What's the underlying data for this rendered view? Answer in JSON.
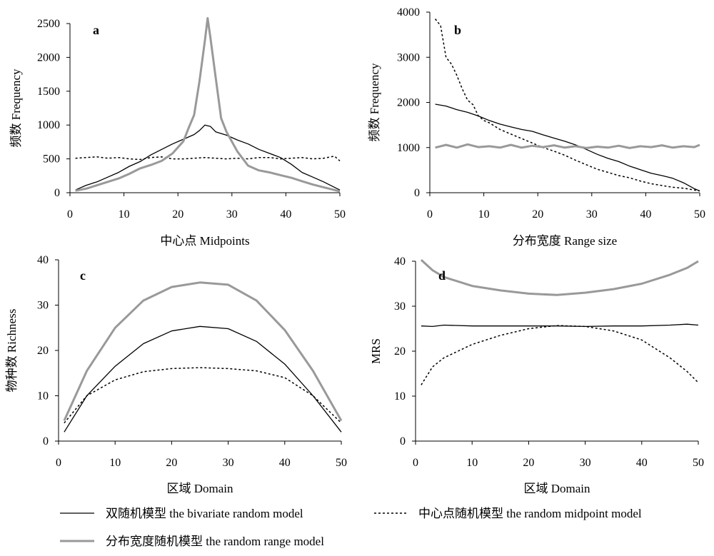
{
  "legend": {
    "bivariate": "双随机模型  the bivariate random model",
    "midpoint": "中心点随机模型  the random midpoint model",
    "range": "分布宽度随机模型  the random range model"
  },
  "colors": {
    "bivariate": "#000000",
    "midpoint": "#000000",
    "range": "#999999"
  },
  "chart_data": [
    {
      "panel": "a",
      "type": "line",
      "xlabel": "中心点  Midpoints",
      "ylabel": "频数  Frequency",
      "xlim": [
        0,
        50
      ],
      "ylim": [
        0,
        2500
      ],
      "xticks": [
        0,
        10,
        20,
        30,
        40,
        50
      ],
      "yticks": [
        0,
        500,
        1000,
        1500,
        2000,
        2500
      ],
      "series": [
        {
          "key": "bivariate",
          "x": [
            1,
            3,
            5,
            7,
            9,
            11,
            13,
            15,
            17,
            19,
            21,
            23,
            24,
            25,
            26,
            27,
            29,
            31,
            33,
            35,
            37,
            39,
            41,
            43,
            45,
            47,
            49,
            50
          ],
          "y": [
            40,
            110,
            160,
            230,
            300,
            390,
            460,
            560,
            640,
            720,
            790,
            860,
            920,
            1000,
            980,
            900,
            850,
            780,
            720,
            640,
            580,
            520,
            420,
            300,
            230,
            160,
            80,
            40
          ]
        },
        {
          "key": "midpoint",
          "x": [
            1,
            3,
            5,
            7,
            9,
            11,
            13,
            15,
            17,
            19,
            21,
            23,
            25,
            27,
            29,
            31,
            33,
            35,
            37,
            39,
            41,
            43,
            45,
            47,
            49,
            50
          ],
          "y": [
            510,
            520,
            530,
            510,
            520,
            500,
            490,
            520,
            530,
            500,
            500,
            510,
            520,
            510,
            500,
            510,
            500,
            520,
            520,
            500,
            510,
            520,
            500,
            510,
            540,
            470
          ]
        },
        {
          "key": "range",
          "x": [
            1,
            3,
            5,
            7,
            9,
            11,
            13,
            15,
            17,
            19,
            21,
            22,
            23,
            24,
            25,
            25.5,
            26,
            27,
            28,
            29,
            31,
            33,
            35,
            37,
            39,
            41,
            43,
            45,
            47,
            49,
            50
          ],
          "y": [
            30,
            60,
            110,
            160,
            210,
            280,
            360,
            410,
            470,
            580,
            760,
            960,
            1150,
            1650,
            2250,
            2580,
            2300,
            1700,
            1100,
            900,
            610,
            400,
            330,
            300,
            260,
            220,
            170,
            120,
            80,
            40,
            20
          ]
        }
      ]
    },
    {
      "panel": "b",
      "type": "line",
      "xlabel": "分布宽度  Range size",
      "ylabel": "频数  Frequency",
      "xlim": [
        0,
        50
      ],
      "ylim": [
        0,
        4000
      ],
      "xticks": [
        0,
        10,
        20,
        30,
        40,
        50
      ],
      "yticks": [
        0,
        1000,
        2000,
        3000,
        4000
      ],
      "series": [
        {
          "key": "bivariate",
          "x": [
            1,
            3,
            5,
            7,
            9,
            11,
            13,
            15,
            17,
            19,
            21,
            23,
            25,
            27,
            29,
            31,
            33,
            35,
            37,
            39,
            41,
            43,
            45,
            47,
            49,
            50
          ],
          "y": [
            1960,
            1920,
            1840,
            1780,
            1700,
            1600,
            1520,
            1460,
            1400,
            1360,
            1280,
            1210,
            1140,
            1060,
            960,
            850,
            760,
            690,
            590,
            510,
            430,
            380,
            320,
            220,
            90,
            40
          ]
        },
        {
          "key": "midpoint",
          "x": [
            1,
            2,
            3,
            4,
            5,
            6,
            7,
            8,
            9,
            10,
            11,
            13,
            15,
            17,
            19,
            21,
            23,
            25,
            27,
            29,
            31,
            33,
            35,
            37,
            39,
            41,
            43,
            45,
            47,
            49,
            50
          ],
          "y": [
            3850,
            3700,
            3000,
            2850,
            2600,
            2300,
            2050,
            1950,
            1700,
            1600,
            1550,
            1400,
            1300,
            1200,
            1100,
            1000,
            920,
            830,
            720,
            620,
            520,
            450,
            380,
            330,
            260,
            200,
            160,
            120,
            100,
            60,
            40
          ]
        },
        {
          "key": "range",
          "x": [
            1,
            3,
            5,
            7,
            9,
            11,
            13,
            15,
            17,
            19,
            21,
            23,
            25,
            27,
            29,
            31,
            33,
            35,
            37,
            39,
            41,
            43,
            45,
            47,
            49,
            50
          ],
          "y": [
            1000,
            1060,
            1000,
            1070,
            1010,
            1030,
            1000,
            1060,
            1000,
            1040,
            1010,
            1050,
            1000,
            1030,
            990,
            1020,
            1000,
            1040,
            990,
            1030,
            1010,
            1050,
            1000,
            1030,
            1010,
            1060
          ]
        }
      ]
    },
    {
      "panel": "c",
      "type": "line",
      "xlabel": "区域  Domain",
      "ylabel": "物种数  Richness",
      "xlim": [
        0,
        50
      ],
      "ylim": [
        0,
        40
      ],
      "xticks": [
        0,
        10,
        20,
        30,
        40,
        50
      ],
      "yticks": [
        0,
        10,
        20,
        30,
        40
      ],
      "series": [
        {
          "key": "bivariate",
          "x": [
            1,
            5,
            10,
            15,
            20,
            25,
            30,
            35,
            40,
            45,
            50
          ],
          "y": [
            2,
            10,
            16.5,
            21.5,
            24.3,
            25.3,
            24.8,
            22,
            17,
            10,
            2
          ]
        },
        {
          "key": "midpoint",
          "x": [
            1,
            5,
            10,
            15,
            20,
            25,
            30,
            35,
            40,
            45,
            50
          ],
          "y": [
            4,
            10,
            13.5,
            15.3,
            16,
            16.2,
            16,
            15.5,
            14,
            10,
            4
          ]
        },
        {
          "key": "range",
          "x": [
            1,
            5,
            10,
            15,
            20,
            25,
            30,
            35,
            40,
            45,
            50
          ],
          "y": [
            4.5,
            15.5,
            25,
            31,
            34,
            35,
            34.5,
            31,
            24.5,
            15.5,
            4.5
          ]
        }
      ]
    },
    {
      "panel": "d",
      "type": "line",
      "xlabel": "区域  Domain",
      "ylabel": "MRS",
      "xlim": [
        0,
        50
      ],
      "ylim": [
        0,
        40
      ],
      "xticks": [
        0,
        10,
        20,
        30,
        40,
        50
      ],
      "yticks": [
        0,
        10,
        20,
        30,
        40
      ],
      "series": [
        {
          "key": "bivariate",
          "x": [
            1,
            3,
            5,
            10,
            15,
            20,
            25,
            30,
            35,
            40,
            45,
            48,
            50
          ],
          "y": [
            25.6,
            25.5,
            25.8,
            25.6,
            25.6,
            25.6,
            25.6,
            25.5,
            25.6,
            25.6,
            25.8,
            26,
            25.8
          ]
        },
        {
          "key": "midpoint",
          "x": [
            1,
            3,
            5,
            10,
            15,
            20,
            25,
            30,
            35,
            40,
            45,
            48,
            50
          ],
          "y": [
            12.5,
            16.5,
            18.5,
            21.5,
            23.5,
            25,
            25.7,
            25.5,
            24.5,
            22.5,
            18.5,
            15.5,
            13
          ]
        },
        {
          "key": "range",
          "x": [
            1,
            3,
            5,
            10,
            15,
            20,
            25,
            30,
            35,
            40,
            45,
            48,
            50
          ],
          "y": [
            40.3,
            38,
            36.5,
            34.5,
            33.5,
            32.8,
            32.5,
            33,
            33.8,
            35,
            37,
            38.5,
            40
          ]
        }
      ]
    }
  ]
}
